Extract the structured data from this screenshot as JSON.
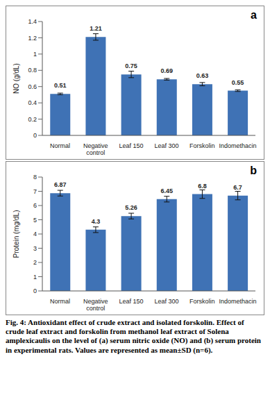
{
  "chart_data": [
    {
      "type": "bar",
      "annotations": [
        "a"
      ],
      "y_label": "NO (g/dL)",
      "categories": [
        "Normal",
        "Negative control",
        "Leaf 150",
        "Leaf 300",
        "Forskolin",
        "Indomethacin"
      ],
      "values": [
        0.51,
        1.21,
        0.75,
        0.69,
        0.63,
        0.55
      ],
      "errors": [
        0.01,
        0.04,
        0.04,
        0.01,
        0.02,
        0.01
      ],
      "color": "#3f72b5",
      "ylim": [
        0,
        1.4
      ],
      "yticks": [
        0,
        0.2,
        0.4,
        0.6,
        0.8,
        1,
        1.2,
        1.4
      ],
      "grid": false,
      "data_labels": true
    },
    {
      "type": "bar",
      "annotations": [
        "b"
      ],
      "y_label": "Protein (mg/dL)",
      "categories": [
        "Normal",
        "Negative control",
        "Leaf 150",
        "Leaf 300",
        "Forskolin",
        "Indomethacin"
      ],
      "values": [
        6.87,
        4.3,
        5.26,
        6.45,
        6.8,
        6.7
      ],
      "errors": [
        0.2,
        0.2,
        0.2,
        0.2,
        0.3,
        0.3
      ],
      "color": "#3f72b5",
      "ylim": [
        0,
        8
      ],
      "yticks": [
        0,
        1,
        2,
        3,
        4,
        5,
        6,
        7,
        8
      ],
      "grid": false,
      "data_labels": true
    }
  ],
  "caption": "Fig. 4: Antioxidant effect of crude extract and isolated forskolin. Effect of crude leaf extract and forskolin from methanol leaf extract of Solena amplexicaulis on the level of (a) serum nitric oxide (NO) and (b) serum protein in experimental rats. Values are represented as mean±SD (n=6)."
}
